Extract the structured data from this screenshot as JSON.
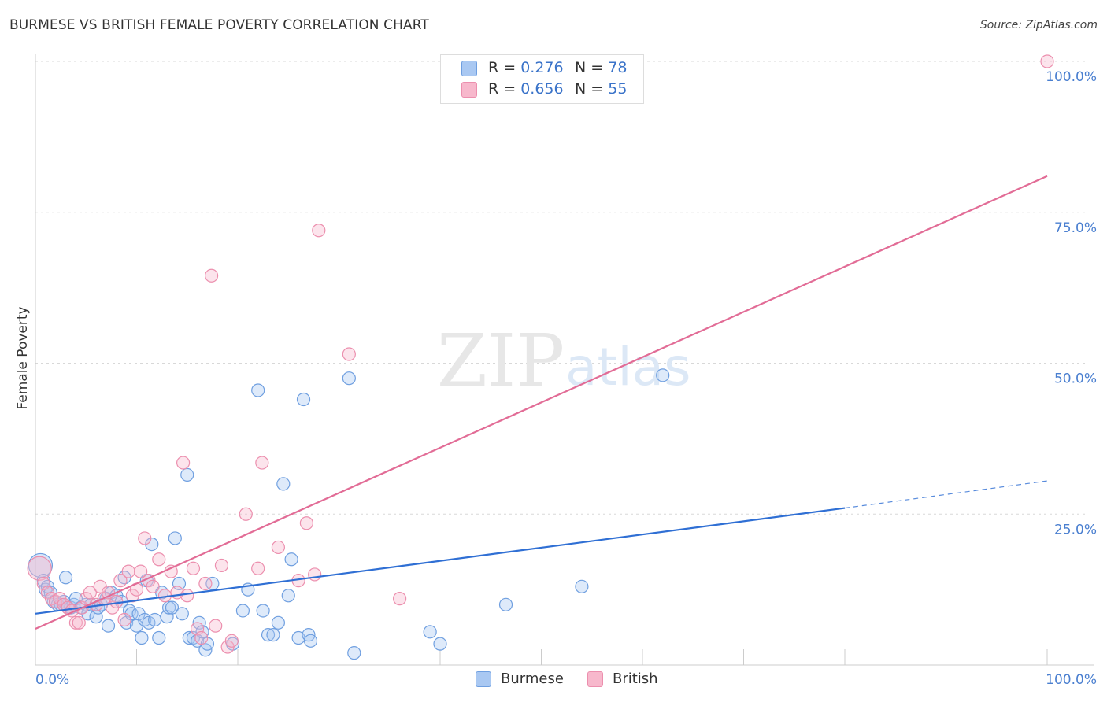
{
  "header": {
    "title": "BURMESE VS BRITISH FEMALE POVERTY CORRELATION CHART",
    "source": "Source: ZipAtlas.com"
  },
  "watermark": {
    "zip": "ZIP",
    "atlas": "atlas"
  },
  "colors": {
    "burmese_fill": "#a9c8f2",
    "burmese_stroke": "#6f9fe0",
    "burmese_line": "#2f6fd4",
    "british_fill": "#f7b8cc",
    "british_stroke": "#ec8fae",
    "british_line": "#e26c96",
    "tick_label": "#4a7fd0",
    "grid": "#d8d8d8"
  },
  "legend_top": {
    "rows": [
      {
        "series": "Burmese",
        "r_label": "R =",
        "r_value": "0.276",
        "n_label": "N =",
        "n_value": "78"
      },
      {
        "series": "British",
        "r_label": "R =",
        "r_value": "0.656",
        "n_label": "N =",
        "n_value": "55"
      }
    ]
  },
  "legend_bottom": {
    "items": [
      "Burmese",
      "British"
    ]
  },
  "chart_data": {
    "type": "scatter",
    "title": "BURMESE VS BRITISH FEMALE POVERTY CORRELATION CHART",
    "xlabel": "",
    "ylabel": "Female Poverty",
    "xlim": [
      0,
      100
    ],
    "ylim": [
      0,
      100
    ],
    "x_tick_labels": [
      "0.0%",
      "100.0%"
    ],
    "y_tick_labels": [
      "100.0%",
      "75.0%",
      "50.0%",
      "25.0%"
    ],
    "y_ticks": [
      100,
      75,
      50,
      25
    ],
    "grid": true,
    "series": [
      {
        "name": "Burmese",
        "r": 0.276,
        "n": 78,
        "trend": {
          "x0": 0,
          "y0": 8.5,
          "x1": 80,
          "y1": 26,
          "dashed_to_x": 100,
          "dashed_to_y": 30.5
        },
        "points": [
          {
            "x": 0.5,
            "y": 16.5
          },
          {
            "x": 0.8,
            "y": 14
          },
          {
            "x": 1,
            "y": 12.5
          },
          {
            "x": 1.2,
            "y": 13
          },
          {
            "x": 1.5,
            "y": 12
          },
          {
            "x": 1.8,
            "y": 10.5
          },
          {
            "x": 2,
            "y": 10.5
          },
          {
            "x": 2.2,
            "y": 10
          },
          {
            "x": 2.5,
            "y": 10
          },
          {
            "x": 2.8,
            "y": 10.5
          },
          {
            "x": 3,
            "y": 14.5
          },
          {
            "x": 3.2,
            "y": 9.5
          },
          {
            "x": 3.5,
            "y": 9.5
          },
          {
            "x": 3.8,
            "y": 10
          },
          {
            "x": 4,
            "y": 11
          },
          {
            "x": 4.5,
            "y": 9.5
          },
          {
            "x": 5,
            "y": 10
          },
          {
            "x": 5.2,
            "y": 8.5
          },
          {
            "x": 5.5,
            "y": 10
          },
          {
            "x": 6,
            "y": 8
          },
          {
            "x": 6.2,
            "y": 9.5
          },
          {
            "x": 6.5,
            "y": 10
          },
          {
            "x": 7,
            "y": 11
          },
          {
            "x": 7.2,
            "y": 6.5
          },
          {
            "x": 7.5,
            "y": 12
          },
          {
            "x": 8,
            "y": 11.5
          },
          {
            "x": 8.5,
            "y": 10.5
          },
          {
            "x": 8.8,
            "y": 14.5
          },
          {
            "x": 9,
            "y": 7
          },
          {
            "x": 9.3,
            "y": 9
          },
          {
            "x": 9.5,
            "y": 8.5
          },
          {
            "x": 10,
            "y": 6.5
          },
          {
            "x": 10.2,
            "y": 8.5
          },
          {
            "x": 10.5,
            "y": 4.5
          },
          {
            "x": 10.8,
            "y": 7.5
          },
          {
            "x": 11,
            "y": 14
          },
          {
            "x": 11.2,
            "y": 7
          },
          {
            "x": 11.5,
            "y": 20
          },
          {
            "x": 11.8,
            "y": 7.5
          },
          {
            "x": 12.2,
            "y": 4.5
          },
          {
            "x": 12.5,
            "y": 12
          },
          {
            "x": 13,
            "y": 8
          },
          {
            "x": 13.2,
            "y": 9.5
          },
          {
            "x": 13.5,
            "y": 9.5
          },
          {
            "x": 13.8,
            "y": 21
          },
          {
            "x": 14.2,
            "y": 13.5
          },
          {
            "x": 14.5,
            "y": 8.5
          },
          {
            "x": 15,
            "y": 31.5
          },
          {
            "x": 15.2,
            "y": 4.5
          },
          {
            "x": 15.6,
            "y": 4.5
          },
          {
            "x": 16,
            "y": 4
          },
          {
            "x": 16.2,
            "y": 7
          },
          {
            "x": 16.5,
            "y": 5.5
          },
          {
            "x": 16.8,
            "y": 2.5
          },
          {
            "x": 17,
            "y": 3.5
          },
          {
            "x": 17.5,
            "y": 13.5
          },
          {
            "x": 19.5,
            "y": 3.5
          },
          {
            "x": 20.5,
            "y": 9
          },
          {
            "x": 21,
            "y": 12.5
          },
          {
            "x": 22,
            "y": 45.5
          },
          {
            "x": 22.5,
            "y": 9
          },
          {
            "x": 23,
            "y": 5
          },
          {
            "x": 23.5,
            "y": 5
          },
          {
            "x": 24,
            "y": 7
          },
          {
            "x": 24.5,
            "y": 30
          },
          {
            "x": 25,
            "y": 11.5
          },
          {
            "x": 25.3,
            "y": 17.5
          },
          {
            "x": 26,
            "y": 4.5
          },
          {
            "x": 26.5,
            "y": 44
          },
          {
            "x": 27,
            "y": 5
          },
          {
            "x": 27.2,
            "y": 4
          },
          {
            "x": 31,
            "y": 47.5
          },
          {
            "x": 31.5,
            "y": 2
          },
          {
            "x": 39,
            "y": 5.5
          },
          {
            "x": 40,
            "y": 3.5
          },
          {
            "x": 46.5,
            "y": 10
          },
          {
            "x": 54,
            "y": 13
          },
          {
            "x": 62,
            "y": 48
          }
        ]
      },
      {
        "name": "British",
        "r": 0.656,
        "n": 55,
        "trend": {
          "x0": 0,
          "y0": 6,
          "x1": 100,
          "y1": 81
        },
        "points": [
          {
            "x": 0.4,
            "y": 16
          },
          {
            "x": 0.8,
            "y": 13.5
          },
          {
            "x": 1.2,
            "y": 12
          },
          {
            "x": 1.6,
            "y": 11
          },
          {
            "x": 2,
            "y": 10.5
          },
          {
            "x": 2.4,
            "y": 11
          },
          {
            "x": 2.8,
            "y": 10
          },
          {
            "x": 3.2,
            "y": 9.5
          },
          {
            "x": 3.6,
            "y": 9
          },
          {
            "x": 4,
            "y": 7
          },
          {
            "x": 4.3,
            "y": 7
          },
          {
            "x": 4.6,
            "y": 9.5
          },
          {
            "x": 5,
            "y": 11
          },
          {
            "x": 5.4,
            "y": 12
          },
          {
            "x": 6,
            "y": 10
          },
          {
            "x": 6.4,
            "y": 13
          },
          {
            "x": 6.8,
            "y": 11
          },
          {
            "x": 7.2,
            "y": 12
          },
          {
            "x": 7.6,
            "y": 9.5
          },
          {
            "x": 8,
            "y": 10.5
          },
          {
            "x": 8.4,
            "y": 14
          },
          {
            "x": 8.8,
            "y": 7.5
          },
          {
            "x": 9.2,
            "y": 15.5
          },
          {
            "x": 9.6,
            "y": 11.5
          },
          {
            "x": 10,
            "y": 12.5
          },
          {
            "x": 10.4,
            "y": 15.5
          },
          {
            "x": 10.8,
            "y": 21
          },
          {
            "x": 11.2,
            "y": 14
          },
          {
            "x": 11.6,
            "y": 13
          },
          {
            "x": 12.2,
            "y": 17.5
          },
          {
            "x": 12.8,
            "y": 11.5
          },
          {
            "x": 13.4,
            "y": 15.5
          },
          {
            "x": 14,
            "y": 12
          },
          {
            "x": 14.6,
            "y": 33.5
          },
          {
            "x": 15,
            "y": 11.5
          },
          {
            "x": 15.6,
            "y": 16
          },
          {
            "x": 16,
            "y": 6
          },
          {
            "x": 16.4,
            "y": 4.5
          },
          {
            "x": 16.8,
            "y": 13.5
          },
          {
            "x": 17.4,
            "y": 64.5
          },
          {
            "x": 17.8,
            "y": 6.5
          },
          {
            "x": 18.4,
            "y": 16.5
          },
          {
            "x": 19,
            "y": 3
          },
          {
            "x": 19.4,
            "y": 4
          },
          {
            "x": 20.8,
            "y": 25
          },
          {
            "x": 22,
            "y": 16
          },
          {
            "x": 22.4,
            "y": 33.5
          },
          {
            "x": 24,
            "y": 19.5
          },
          {
            "x": 26,
            "y": 14
          },
          {
            "x": 26.8,
            "y": 23.5
          },
          {
            "x": 27.6,
            "y": 15
          },
          {
            "x": 28,
            "y": 72
          },
          {
            "x": 31,
            "y": 51.5
          },
          {
            "x": 36,
            "y": 11
          },
          {
            "x": 100,
            "y": 100
          }
        ]
      }
    ]
  }
}
